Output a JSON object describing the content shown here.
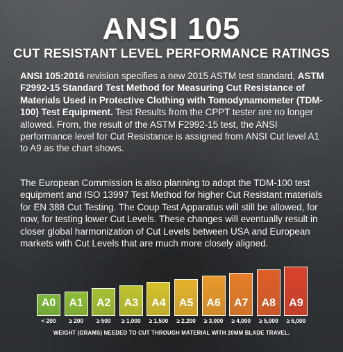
{
  "header": {
    "title": "ANSI 105",
    "subtitle": "CUT RESISTANT LEVEL PERFORMANCE RATINGS"
  },
  "paragraph1": {
    "bold1": "ANSI 105:2016",
    "text1": " revision specifies a new 2015 ASTM test standard, ",
    "bold2": "ASTM F2992-15 Standard Test Method for Measuring Cut Resistance of Materials Used in Protective Clothing with Tomodynamometer (TDM-100) Test Equipment.",
    "text2": " Test Results from the CPPT tester are no longer allowed. From, the result of the ASTM F2992-15 test, the ANSI performance level for Cut Resistance is assigned from ANSI Cut level A1 to A9 as the chart shows."
  },
  "paragraph2": {
    "text": "The European Commission is also planning to adopt the TDM-100 test equipment and ISO 13997 Test Method for higher Cut Resistant materials for EN 388 Cut Testing. The Coup Test Apparatus will still be allowed, for now, for testing lower Cut Levels. These changes will eventually result in closer global harmonization of Cut Levels between USA and European markets with Cut Levels that are much more closely aligned."
  },
  "levels": [
    {
      "label": "A0",
      "weight": "< 200",
      "color": "#7db93a",
      "level": 0
    },
    {
      "label": "A1",
      "weight": "≥ 200",
      "color": "#8cbd36",
      "level": 1
    },
    {
      "label": "A2",
      "weight": "≥ 500",
      "color": "#a5c232",
      "level": 2
    },
    {
      "label": "A3",
      "weight": "≥ 1,000",
      "color": "#bfc42f",
      "level": 3
    },
    {
      "label": "A4",
      "weight": "≥ 1,500",
      "color": "#d6c22d",
      "level": 4
    },
    {
      "label": "A5",
      "weight": "≥ 2,200",
      "color": "#e5b22c",
      "level": 5
    },
    {
      "label": "A6",
      "weight": "≥ 3,000",
      "color": "#e89a2b",
      "level": 6
    },
    {
      "label": "A7",
      "weight": "≥ 4,000",
      "color": "#e67e2a",
      "level": 7
    },
    {
      "label": "A8",
      "weight": "≥ 5,000",
      "color": "#e05f2a",
      "level": 8
    },
    {
      "label": "A9",
      "weight": "≥ 6,000",
      "color": "#d8422b",
      "level": 9
    }
  ],
  "footer": "WEIGHT (GRAMS) NEEDED TO CUT THROUGH MATERIAL WITH 20MM BLADE TRAVEL."
}
